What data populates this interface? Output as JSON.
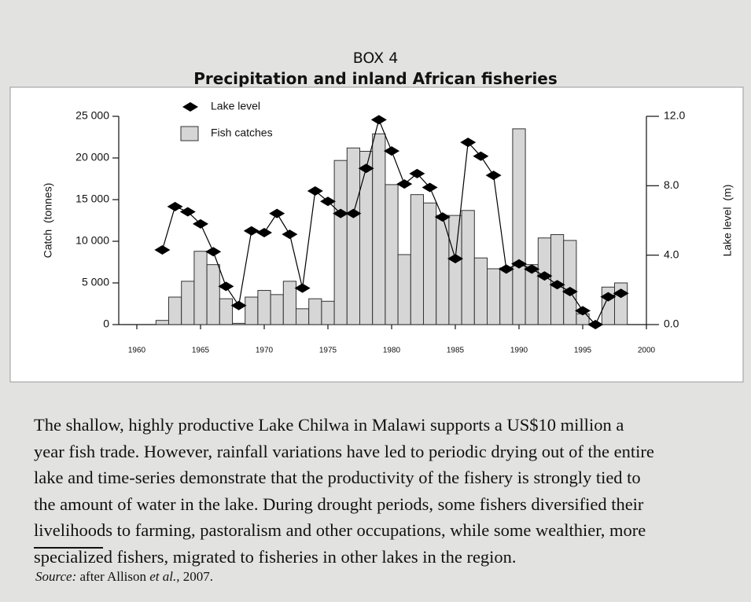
{
  "header": {
    "label": "BOX 4",
    "title": "Precipitation and inland African fisheries"
  },
  "chart_data": {
    "type": "bar",
    "x": [
      1962,
      1963,
      1964,
      1965,
      1966,
      1967,
      1968,
      1969,
      1970,
      1971,
      1972,
      1973,
      1974,
      1975,
      1976,
      1977,
      1978,
      1979,
      1980,
      1981,
      1982,
      1983,
      1984,
      1985,
      1986,
      1987,
      1988,
      1989,
      1990,
      1991,
      1992,
      1993,
      1994,
      1995,
      1996,
      1997,
      1998
    ],
    "series": [
      {
        "name": "Lake level",
        "type": "line",
        "axis": "y2",
        "color": "#000000",
        "values": [
          4.3,
          6.8,
          6.5,
          5.8,
          4.2,
          2.2,
          1.1,
          5.4,
          5.3,
          6.4,
          5.2,
          2.1,
          7.7,
          7.1,
          6.4,
          6.4,
          9.0,
          11.8,
          10.0,
          8.1,
          8.7,
          7.9,
          6.2,
          3.8,
          10.5,
          9.7,
          8.6,
          3.2,
          3.5,
          3.2,
          2.8,
          2.3,
          1.9,
          0.8,
          0.0,
          1.6,
          1.8
        ]
      },
      {
        "name": "Fish catches",
        "type": "bar",
        "color": "#d6d6d6",
        "values": [
          500,
          3300,
          5200,
          8800,
          7200,
          3100,
          150,
          3300,
          4100,
          3600,
          5200,
          1900,
          3100,
          2800,
          19700,
          21200,
          20800,
          22900,
          16800,
          8400,
          15600,
          14600,
          13100,
          13100,
          13700,
          8000,
          6700,
          6800,
          23500,
          7200,
          10400,
          10800,
          10100,
          1300,
          null,
          4500,
          5000
        ]
      }
    ],
    "xlim": [
      1960,
      2000
    ],
    "xticks": [
      1960,
      1965,
      1970,
      1975,
      1980,
      1985,
      1990,
      1995,
      2000
    ],
    "ylim": [
      0,
      25000
    ],
    "yticks": [
      0,
      {
        "value": 5000,
        "label": "5 000"
      },
      {
        "value": 10000,
        "label": "10 000"
      },
      {
        "value": 15000,
        "label": "15 000"
      },
      {
        "value": 20000,
        "label": "20 000"
      },
      {
        "value": 25000,
        "label": "25 000"
      }
    ],
    "y2lim": [
      0,
      12
    ],
    "y2ticks": [
      {
        "value": 0,
        "label": "0.0"
      },
      {
        "value": 4,
        "label": "4.0"
      },
      {
        "value": 8,
        "label": "8.0"
      },
      {
        "value": 12,
        "label": "12.0"
      }
    ],
    "ylabel": "Catch  (tonnes)",
    "y2label": "Lake level  (m)"
  },
  "body": [
    "The shallow, highly productive Lake Chilwa in Malawi supports a US$10 million a",
    "year fish trade. However, rainfall variations have led to periodic drying out of the entire",
    "lake and time-series demonstrate that the productivity of the fishery is strongly tied to",
    "the amount of water in the lake. During drought periods, some fishers diversified their",
    "livelihoods to farming, pastoralism and other occupations, while some wealthier, more",
    "specialized fishers, migrated to fisheries in other lakes in the region."
  ],
  "source": [
    "Source:",
    " after Allison ",
    "et al.,",
    " 2007."
  ]
}
